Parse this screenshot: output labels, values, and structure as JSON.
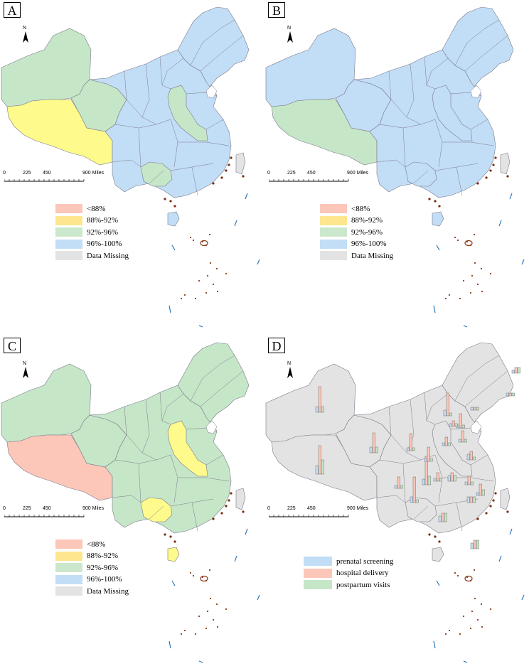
{
  "panels": [
    {
      "id": "A",
      "label": "A",
      "west_color": "#c6e6c8",
      "tibet_color": "#fffa8c",
      "north_color": "#c6e6c8",
      "qinghai_color": "#c6e6c8",
      "main_color": "#c2ddf6",
      "ne_color": "#c2ddf6",
      "central_strip_color": "#c6e6c8",
      "guizhou_color": "#c6e6c8"
    },
    {
      "id": "B",
      "label": "B",
      "west_color": "#c2ddf6",
      "tibet_color": "#c6e6c8",
      "north_color": "#c2ddf6",
      "qinghai_color": "#c2ddf6",
      "main_color": "#c2ddf6",
      "ne_color": "#c2ddf6",
      "central_strip_color": "#c2ddf6",
      "guizhou_color": "#c2ddf6"
    },
    {
      "id": "C",
      "label": "C",
      "west_color": "#c6e6c8",
      "tibet_color": "#fcc6b8",
      "north_color": "#c6e6c8",
      "qinghai_color": "#c6e6c8",
      "main_color": "#c6e6c8",
      "ne_color": "#c6e6c8",
      "central_strip_color": "#fffa8c",
      "guizhou_color": "#fffa8c"
    },
    {
      "id": "D",
      "label": "D",
      "west_color": "#e3e3e3",
      "tibet_color": "#e3e3e3",
      "north_color": "#e3e3e3",
      "qinghai_color": "#e3e3e3",
      "main_color": "#e3e3e3",
      "ne_color": "#e3e3e3",
      "central_strip_color": "#e3e3e3",
      "guizhou_color": "#e3e3e3"
    }
  ],
  "scale_bar": {
    "ticks": [
      "0",
      "225",
      "450",
      "900 Miles"
    ]
  },
  "north_arrow": {
    "label": "N"
  },
  "rate_legend": [
    {
      "label": "<88%",
      "color": "#fcc6b8"
    },
    {
      "label": "88%-92%",
      "color": "#fde68e"
    },
    {
      "label": "92%-96%",
      "color": "#cbe8cd"
    },
    {
      "label": "96%-100%",
      "color": "#c2ddf6"
    },
    {
      "label": "Data Missing",
      "color": "#e3e3e3"
    }
  ],
  "bar_legend": [
    {
      "label": "prenatal screening",
      "color": "#c2ddf6"
    },
    {
      "label": "hospital delivery",
      "color": "#fcc6b8"
    },
    {
      "label": "postpartum visits",
      "color": "#c6e6c8"
    }
  ],
  "panel_d_bars": [
    {
      "prenatal": 0.2,
      "delivery": 0.9,
      "postpartum": 0.2
    },
    {
      "prenatal": 0.3,
      "delivery": 1.0,
      "postpartum": 0.5
    },
    {
      "prenatal": 0.2,
      "delivery": 0.7,
      "postpartum": 0.2
    },
    {
      "prenatal": 0.1,
      "delivery": 0.6,
      "postpartum": 0.1
    },
    {
      "prenatal": 0.2,
      "delivery": 0.8,
      "postpartum": 0.1
    },
    {
      "prenatal": 0.1,
      "delivery": 0.5,
      "postpartum": 0.1
    },
    {
      "prenatal": 0.2,
      "delivery": 1.0,
      "postpartum": 0.3
    },
    {
      "prenatal": 0.1,
      "delivery": 0.4,
      "postpartum": 0.1
    },
    {
      "prenatal": 0.2,
      "delivery": 0.9,
      "postpartum": 0.1
    },
    {
      "prenatal": 0.1,
      "delivery": 0.5,
      "postpartum": 0.1
    },
    {
      "prenatal": 0.1,
      "delivery": 0.3,
      "postpartum": 0.1
    },
    {
      "prenatal": 0.1,
      "delivery": 0.4,
      "postpartum": 0.1
    },
    {
      "prenatal": 0.2,
      "delivery": 0.3,
      "postpartum": 0.1
    },
    {
      "prenatal": 0.2,
      "delivery": 0.3,
      "postpartum": 0.3
    },
    {
      "prenatal": 0.1,
      "delivery": 0.3,
      "postpartum": 0.1
    },
    {
      "prenatal": 0.2,
      "delivery": 0.3,
      "postpartum": 0.2
    },
    {
      "prenatal": 0.1,
      "delivery": 0.3,
      "postpartum": 0.1
    },
    {
      "prenatal": 0.1,
      "delivery": 0.4,
      "postpartum": 0.2
    },
    {
      "prenatal": 0.2,
      "delivery": 0.2,
      "postpartum": 0.2
    },
    {
      "prenatal": 0.1,
      "delivery": 0.2,
      "postpartum": 0.2
    },
    {
      "prenatal": 0.1,
      "delivery": 0.1,
      "postpartum": 0.1
    },
    {
      "prenatal": 0.1,
      "delivery": 0.2,
      "postpartum": 0.1
    },
    {
      "prenatal": 0.1,
      "delivery": 0.1,
      "postpartum": 0.1
    },
    {
      "prenatal": 0.2,
      "delivery": 0.3,
      "postpartum": 0.3
    }
  ]
}
